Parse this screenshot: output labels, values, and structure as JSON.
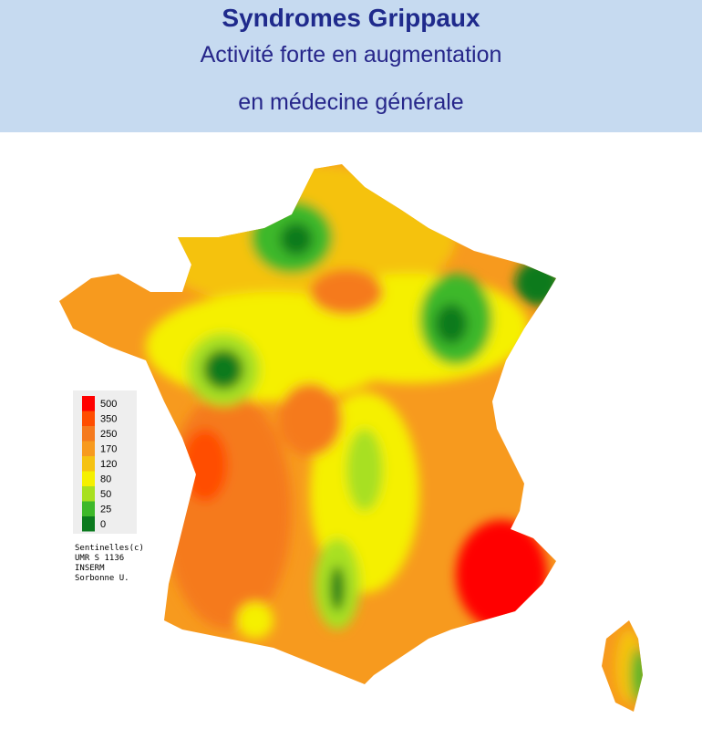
{
  "header": {
    "title": "Syndromes Grippaux",
    "subtitle_lines": [
      "Activité forte en augmentation",
      "en médecine générale"
    ]
  },
  "legend": {
    "items": [
      {
        "label": "500",
        "color": "#ff0000"
      },
      {
        "label": "350",
        "color": "#ff4d00"
      },
      {
        "label": "250",
        "color": "#f57a1e"
      },
      {
        "label": "170",
        "color": "#f79a1e"
      },
      {
        "label": "120",
        "color": "#f5c211"
      },
      {
        "label": "80",
        "color": "#f5f000"
      },
      {
        "label": "50",
        "color": "#a8e020"
      },
      {
        "label": "25",
        "color": "#3db82a"
      },
      {
        "label": "0",
        "color": "#0b7a1e"
      }
    ]
  },
  "credits": [
    "Sentinelles(c)",
    "UMR S 1136",
    "INSERM",
    "Sorbonne U."
  ]
}
